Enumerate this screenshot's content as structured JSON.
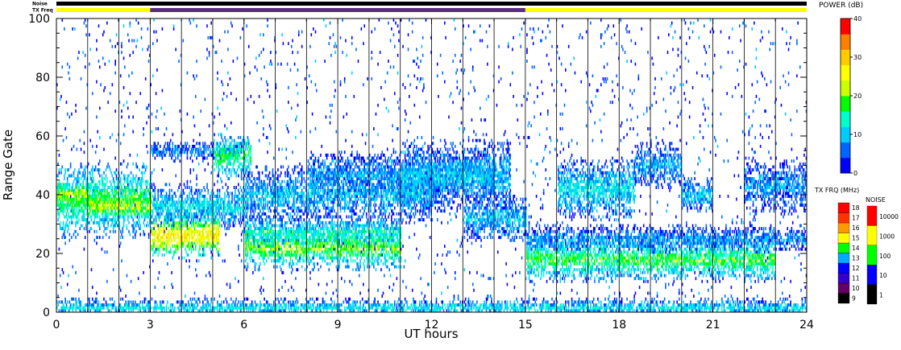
{
  "chart_data": {
    "type": "heatmap",
    "title": "",
    "xlabel": "UT hours",
    "ylabel": "Range Gate",
    "xlim": [
      0,
      24
    ],
    "ylim": [
      0,
      100
    ],
    "x_ticks": [
      "0",
      "3",
      "6",
      "9",
      "12",
      "15",
      "18",
      "21",
      "24"
    ],
    "y_ticks": [
      "0",
      "20",
      "40",
      "60",
      "80",
      "100"
    ],
    "vertical_gridlines_hours": [
      1,
      2,
      3,
      4,
      5,
      6,
      7,
      8,
      9,
      10,
      11,
      12,
      13,
      14,
      15,
      16,
      17,
      18,
      19,
      20,
      21,
      22,
      23
    ],
    "status_bars": {
      "noise_label": "Noise",
      "txfreq_label": "TX Freq",
      "noise_color": "#000000",
      "txfreq_segments": [
        {
          "start": 0,
          "end": 3,
          "color": "#ffff00"
        },
        {
          "start": 3,
          "end": 15,
          "color": "#5a2d82"
        },
        {
          "start": 15,
          "end": 24,
          "color": "#ffff00"
        }
      ]
    },
    "scatter_bands": [
      {
        "start": 0,
        "end": 3,
        "center": 38,
        "width": 8,
        "power": 18
      },
      {
        "start": 0,
        "end": 1,
        "center": 40,
        "width": 3,
        "power": 24
      },
      {
        "start": 1,
        "end": 3,
        "center": 36,
        "width": 3,
        "power": 25
      },
      {
        "start": 3,
        "end": 5.2,
        "center": 26,
        "width": 5,
        "power": 28
      },
      {
        "start": 3,
        "end": 6,
        "center": 36,
        "width": 5,
        "power": 12
      },
      {
        "start": 3,
        "end": 6,
        "center": 55,
        "width": 2,
        "power": 8
      },
      {
        "start": 5,
        "end": 6.2,
        "center": 53,
        "width": 5,
        "power": 18
      },
      {
        "start": 6,
        "end": 11,
        "center": 22,
        "width": 5,
        "power": 20
      },
      {
        "start": 6,
        "end": 11,
        "center": 27,
        "width": 4,
        "power": 14
      },
      {
        "start": 6,
        "end": 12,
        "center": 40,
        "width": 6,
        "power": 10
      },
      {
        "start": 8,
        "end": 14,
        "center": 47,
        "width": 5,
        "power": 9
      },
      {
        "start": 11,
        "end": 14.5,
        "center": 46,
        "width": 8,
        "power": 10
      },
      {
        "start": 13,
        "end": 15,
        "center": 32,
        "width": 5,
        "power": 10
      },
      {
        "start": 15,
        "end": 23,
        "center": 18,
        "width": 5,
        "power": 18
      },
      {
        "start": 15,
        "end": 24,
        "center": 25,
        "width": 3,
        "power": 8
      },
      {
        "start": 16,
        "end": 18.5,
        "center": 42,
        "width": 7,
        "power": 12
      },
      {
        "start": 18.5,
        "end": 20,
        "center": 50,
        "width": 5,
        "power": 9
      },
      {
        "start": 20,
        "end": 21,
        "center": 40,
        "width": 4,
        "power": 10
      },
      {
        "start": 22,
        "end": 24,
        "center": 43,
        "width": 6,
        "power": 8
      },
      {
        "start": 0,
        "end": 24,
        "center": 1.5,
        "width": 2,
        "power": 12
      }
    ],
    "legends": [
      {
        "title": "POWER (dB)",
        "range": [
          0,
          40
        ],
        "ticks": [
          "0",
          "10",
          "20",
          "30",
          "40"
        ],
        "colors": [
          "#0000ff",
          "#0066ff",
          "#00ccff",
          "#00ffcc",
          "#00ff00",
          "#ccff00",
          "#ffff00",
          "#ffcc00",
          "#ff8000",
          "#ff0000"
        ]
      },
      {
        "title": "TX FRQ (MHz)",
        "ticks": [
          "9",
          "10",
          "11",
          "12",
          "13",
          "14",
          "15",
          "16",
          "17",
          "18"
        ],
        "colors": [
          "#000000",
          "#660066",
          "#3300cc",
          "#0000ff",
          "#00aaff",
          "#00ff00",
          "#ffff00",
          "#ff9900",
          "#ff3300",
          "#ff0000"
        ]
      },
      {
        "title": "NOISE",
        "ticks": [
          "1",
          "10",
          "100",
          "1000",
          "10000"
        ],
        "colors": [
          "#000000",
          "#0000ff",
          "#00ff00",
          "#ffff00",
          "#ff0000"
        ]
      }
    ]
  }
}
